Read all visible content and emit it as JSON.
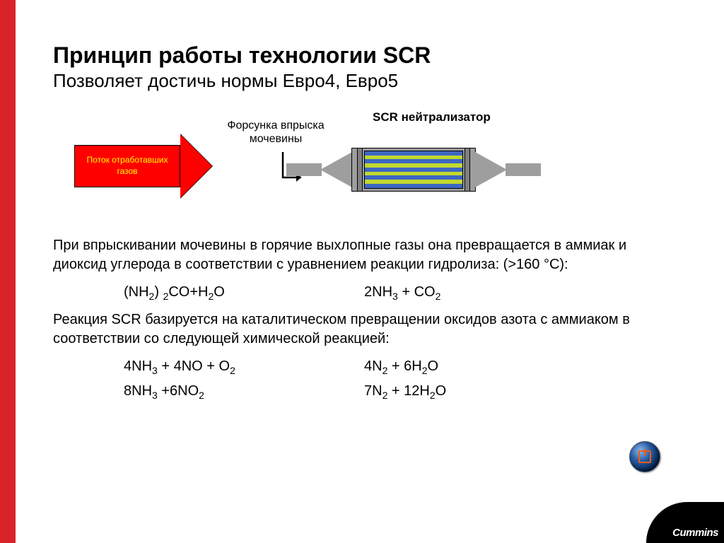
{
  "slide": {
    "title": "Принцип работы технологии SCR",
    "subtitle": "Позволяет достичь нормы Евро4, Евро5"
  },
  "diagram": {
    "exhaust_arrow_label": "Поток отработавших газов",
    "injector_label": "Форсунка впрыска мочевины",
    "scr_label": "SCR нейтрализатор",
    "arrow_fill": "#ff0000",
    "arrow_text_color": "#ffff00",
    "pipe_color": "#9e9e9e",
    "stripe_colors": [
      "#3d66c2",
      "#c1d82f",
      "#3d66c2",
      "#c1d82f",
      "#3d66c2",
      "#c1d82f",
      "#3d66c2",
      "#c1d82f",
      "#3d66c2"
    ]
  },
  "paragraph1": "При впрыскивании мочевины в горячие выхлопные газы она превращается в аммиак и диоксид углерода в соответствии с уравнением реакции гидролиза: (>160 °C):",
  "eq1": {
    "lhs_html": "(NH<sub>2</sub>) <sub>2</sub>CO+H<sub>2</sub>O",
    "rhs_html": "2NH<sub>3</sub> + CO<sub>2</sub>"
  },
  "paragraph2": "Реакция SCR базируется на каталитическом превращении оксидов азота с аммиаком в соответствии со следующей химической реакцией:",
  "eq2": {
    "lhs_html": "4NH<sub>3</sub> + 4NO + O<sub>2</sub>",
    "rhs_html": "4N<sub>2</sub> + 6H<sub>2</sub>O"
  },
  "eq3": {
    "lhs_html": "8NH<sub>3</sub> +6NO<sub>2</sub>",
    "rhs_html": "7N<sub>2</sub> + 12H<sub>2</sub>O"
  },
  "logo_text": "Cummins",
  "colors": {
    "redbar": "#d8232a",
    "background": "#ffffff",
    "text": "#000000"
  }
}
